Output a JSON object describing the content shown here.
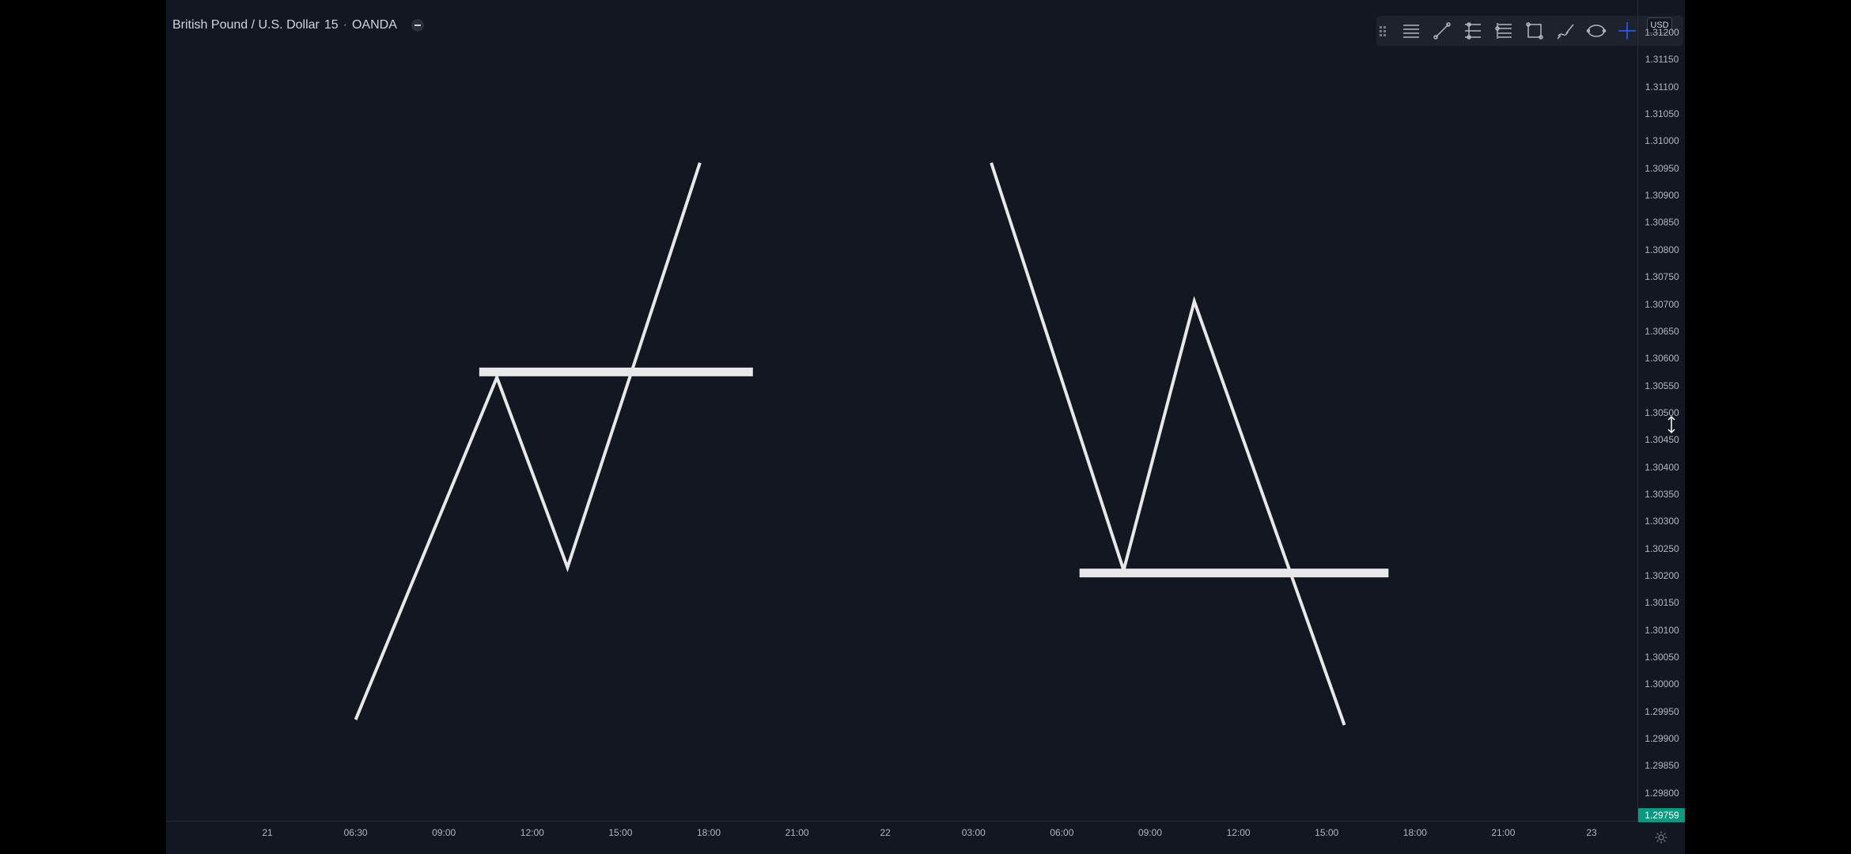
{
  "symbol": {
    "name": "British Pound / U.S. Dollar",
    "interval": "15",
    "exchange": "OANDA"
  },
  "currency_label": "USD",
  "toolbar": {
    "tools": [
      {
        "icon": "horizontal-lines-icon"
      },
      {
        "icon": "trend-line-icon"
      },
      {
        "icon": "pitchfork-icon"
      },
      {
        "icon": "fib-retracement-icon"
      },
      {
        "icon": "rectangle-icon"
      },
      {
        "icon": "brush-icon"
      },
      {
        "icon": "ellipse-icon"
      },
      {
        "icon": "crosshair-icon"
      }
    ]
  },
  "colors": {
    "background": "#131722",
    "drawing": "#e8e8e8",
    "axis_text": "#b2b5be",
    "price_label": "#089981",
    "active_tool": "#2962ff"
  },
  "current_price": "1.29759",
  "chart_data": {
    "type": "line",
    "y_axis_ticks": [
      "1.31200",
      "1.31150",
      "1.31100",
      "1.31050",
      "1.31000",
      "1.30950",
      "1.30900",
      "1.30850",
      "1.30800",
      "1.30750",
      "1.30700",
      "1.30650",
      "1.30600",
      "1.30550",
      "1.30500",
      "1.30450",
      "1.30400",
      "1.30350",
      "1.30300",
      "1.30250",
      "1.30200",
      "1.30150",
      "1.30100",
      "1.30050",
      "1.30000",
      "1.29950",
      "1.29900",
      "1.29850",
      "1.29800"
    ],
    "x_axis_ticks": [
      "21",
      "06:30",
      "09:00",
      "12:00",
      "15:00",
      "18:00",
      "21:00",
      "22",
      "03:00",
      "06:00",
      "09:00",
      "12:00",
      "15:00",
      "18:00",
      "21:00",
      "23"
    ],
    "series": [
      {
        "points": [
          [
            1.0,
            1.29935
          ],
          [
            2.6,
            1.30565
          ],
          [
            3.4,
            1.30215
          ],
          [
            4.9,
            1.3096
          ]
        ]
      },
      {
        "points": [
          [
            8.2,
            1.3096
          ],
          [
            9.7,
            1.3021
          ],
          [
            10.5,
            1.30705
          ],
          [
            12.2,
            1.29925
          ]
        ]
      }
    ],
    "horizontal_lines": [
      {
        "y": 1.30575,
        "x_start": 2.4,
        "x_end": 5.5
      },
      {
        "y": 1.30205,
        "x_start": 9.2,
        "x_end": 12.7
      }
    ],
    "ylim": [
      1.29759,
      1.312
    ]
  }
}
